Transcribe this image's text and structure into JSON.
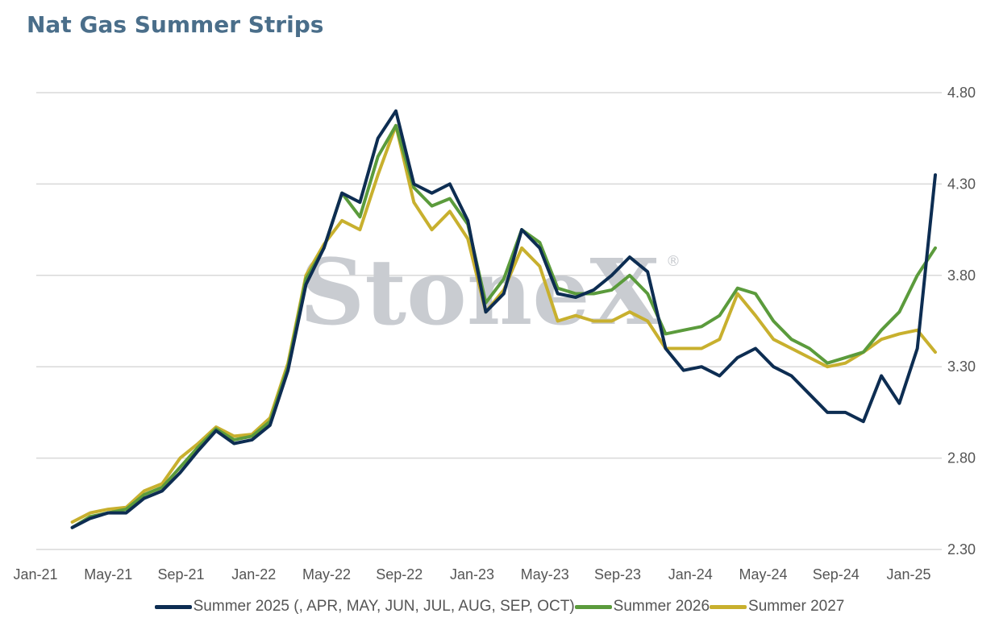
{
  "title": "Nat Gas Summer Strips",
  "watermark": {
    "text": "StoneX",
    "mark": "®"
  },
  "colors": {
    "summer_2025": "#0d2d52",
    "summer_2026": "#5b9b3c",
    "summer_2027": "#c8b02e",
    "grid": "#d9d9d9",
    "title": "#4a6e8a"
  },
  "chart_data": {
    "type": "line",
    "title": "Nat Gas Summer Strips",
    "xlabel": "",
    "ylabel": "",
    "y_axis_side": "right",
    "ylim": [
      2.3,
      4.8
    ],
    "y_ticks": [
      "4.80",
      "4.30",
      "3.80",
      "3.30",
      "2.80",
      "2.30"
    ],
    "x_tick_labels": [
      "Jan-21",
      "May-21",
      "Sep-21",
      "Jan-22",
      "May-22",
      "Sep-22",
      "Jan-23",
      "May-23",
      "Sep-23",
      "Jan-24",
      "May-24",
      "Sep-24",
      "Jan-25"
    ],
    "x": [
      "2021-03",
      "2021-04",
      "2021-05",
      "2021-06",
      "2021-07",
      "2021-08",
      "2021-09",
      "2021-10",
      "2021-11",
      "2021-12",
      "2022-01",
      "2022-02",
      "2022-03",
      "2022-04",
      "2022-05",
      "2022-06",
      "2022-07",
      "2022-08",
      "2022-09",
      "2022-10",
      "2022-11",
      "2022-12",
      "2023-01",
      "2023-02",
      "2023-03",
      "2023-04",
      "2023-05",
      "2023-06",
      "2023-07",
      "2023-08",
      "2023-09",
      "2023-10",
      "2023-11",
      "2023-12",
      "2024-01",
      "2024-02",
      "2024-03",
      "2024-04",
      "2024-05",
      "2024-06",
      "2024-07",
      "2024-08",
      "2024-09",
      "2024-10",
      "2024-11",
      "2024-12",
      "2025-01",
      "2025-02",
      "2025-03"
    ],
    "legend_position": "bottom",
    "grid": true,
    "series": [
      {
        "name": "Summer 2025 (, APR, MAY, JUN, JUL, AUG, SEP, OCT)",
        "color": "#0d2d52",
        "values": [
          2.42,
          2.47,
          2.5,
          2.5,
          2.58,
          2.62,
          2.72,
          2.84,
          2.95,
          2.88,
          2.9,
          2.98,
          3.28,
          3.75,
          3.95,
          4.25,
          4.2,
          4.55,
          4.7,
          4.3,
          4.25,
          4.3,
          4.1,
          3.6,
          3.7,
          4.05,
          3.95,
          3.7,
          3.68,
          3.72,
          3.8,
          3.9,
          3.82,
          3.4,
          3.28,
          3.3,
          3.25,
          3.35,
          3.4,
          3.3,
          3.25,
          3.15,
          3.05,
          3.05,
          3.0,
          3.25,
          3.1,
          3.4,
          4.35
        ]
      },
      {
        "name": "Summer 2026",
        "color": "#5b9b3c",
        "values": [
          2.42,
          2.48,
          2.5,
          2.52,
          2.6,
          2.64,
          2.75,
          2.86,
          2.96,
          2.9,
          2.92,
          3.0,
          3.3,
          3.78,
          3.95,
          4.25,
          4.12,
          4.45,
          4.62,
          4.28,
          4.18,
          4.22,
          4.08,
          3.65,
          3.78,
          4.05,
          3.98,
          3.73,
          3.7,
          3.7,
          3.72,
          3.8,
          3.7,
          3.48,
          3.5,
          3.52,
          3.58,
          3.73,
          3.7,
          3.55,
          3.45,
          3.4,
          3.32,
          3.35,
          3.38,
          3.5,
          3.6,
          3.8,
          3.95
        ]
      },
      {
        "name": "Summer 2027",
        "color": "#c8b02e",
        "values": [
          2.45,
          2.5,
          2.52,
          2.53,
          2.62,
          2.66,
          2.8,
          2.88,
          2.97,
          2.92,
          2.93,
          3.02,
          3.32,
          3.8,
          3.97,
          4.1,
          4.05,
          4.35,
          4.62,
          4.2,
          4.05,
          4.15,
          4.0,
          3.6,
          3.72,
          3.95,
          3.85,
          3.55,
          3.58,
          3.55,
          3.55,
          3.6,
          3.55,
          3.4,
          3.4,
          3.4,
          3.45,
          3.7,
          3.58,
          3.45,
          3.4,
          3.35,
          3.3,
          3.32,
          3.38,
          3.45,
          3.48,
          3.5,
          3.38
        ]
      }
    ]
  }
}
